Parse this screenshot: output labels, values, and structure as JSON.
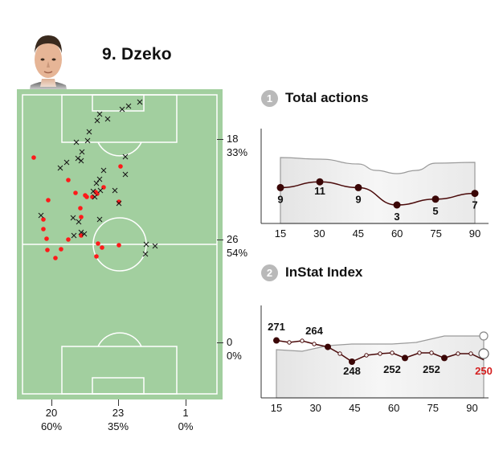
{
  "player": {
    "number_name": "9. Dzeko",
    "avatar_icon": "player-photo-icon"
  },
  "pitch_stats": {
    "right": [
      {
        "value": "18",
        "percent": "33%"
      },
      {
        "value": "26",
        "percent": "54%"
      },
      {
        "value": "0",
        "percent": "0%"
      }
    ],
    "bottom": [
      {
        "value": "20",
        "percent": "60%"
      },
      {
        "value": "23",
        "percent": "35%"
      },
      {
        "value": "1",
        "percent": "0%"
      }
    ]
  },
  "sections": {
    "total_actions": {
      "badge": "1",
      "title": "Total actions"
    },
    "instat_index": {
      "badge": "2",
      "title": "InStat Index"
    }
  },
  "colors": {
    "pitch": "#a2cf9f",
    "accent_red": "#e8262a",
    "dot_red": "#ff1a1a",
    "line_dark": "#4a0a0a"
  },
  "chart_data": [
    {
      "type": "line",
      "title": "Total actions",
      "categories": [
        "15",
        "30",
        "45",
        "60",
        "75",
        "90"
      ],
      "x": [
        7.5,
        22.5,
        37.5,
        52.5,
        67.5,
        82.5
      ],
      "series": [
        {
          "values": [
            9,
            11,
            9,
            3,
            5,
            7
          ]
        }
      ]
    },
    {
      "type": "line",
      "title": "InStat Index",
      "categories": [
        "15",
        "30",
        "45",
        "60",
        "75",
        "90"
      ],
      "x": [
        0,
        15,
        30,
        45,
        60,
        75,
        90
      ],
      "series": [
        {
          "labeled_values": [
            271,
            264,
            248,
            252,
            252,
            250
          ]
        }
      ]
    }
  ]
}
